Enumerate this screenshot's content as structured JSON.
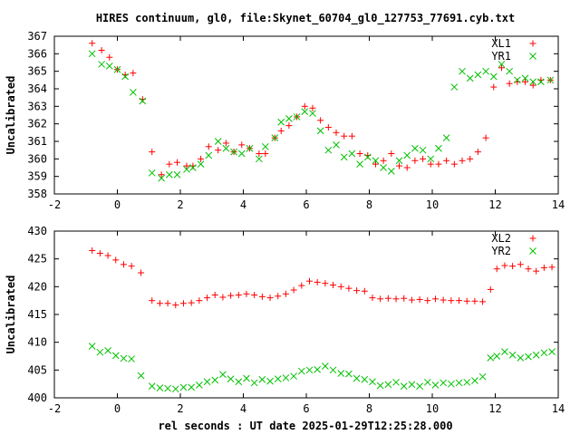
{
  "chart_data": [
    {
      "type": "scatter",
      "title": "HIRES continuum, gl0, file:Skynet_60704_gl0_127753_77691.cyb.txt",
      "ylabel": "Uncalibrated",
      "xlabel": "",
      "xlim": [
        -2,
        14
      ],
      "ylim": [
        358,
        367
      ],
      "xticks": [
        "-2",
        "0",
        "2",
        "4",
        "6",
        "8",
        "10",
        "12",
        "14"
      ],
      "yticks": [
        "358",
        "359",
        "360",
        "361",
        "362",
        "363",
        "364",
        "365",
        "366",
        "367"
      ],
      "legend_position": "top-right",
      "series": [
        {
          "name": "XL1",
          "marker": "plus",
          "color": "#ff0000",
          "x": [
            -0.8,
            -0.5,
            -0.25,
            0,
            0.25,
            0.5,
            0.8,
            1.1,
            1.4,
            1.65,
            1.9,
            2.2,
            2.4,
            2.65,
            2.9,
            3.2,
            3.45,
            3.7,
            3.95,
            4.2,
            4.5,
            4.7,
            5.0,
            5.2,
            5.45,
            5.7,
            5.95,
            6.2,
            6.45,
            6.7,
            6.95,
            7.2,
            7.45,
            7.7,
            7.95,
            8.2,
            8.45,
            8.7,
            8.95,
            9.2,
            9.45,
            9.7,
            9.95,
            10.2,
            10.45,
            10.7,
            10.95,
            11.2,
            11.45,
            11.7,
            11.95,
            12.2,
            12.45,
            12.7,
            12.95,
            13.2,
            13.45,
            13.75
          ],
          "y": [
            366.6,
            366.2,
            365.8,
            365.1,
            364.8,
            364.9,
            363.4,
            360.4,
            359.1,
            359.7,
            359.8,
            359.6,
            359.6,
            360.0,
            360.7,
            360.5,
            360.9,
            360.4,
            360.8,
            360.6,
            360.3,
            360.3,
            361.2,
            361.6,
            361.9,
            362.4,
            363.0,
            362.9,
            362.2,
            361.8,
            361.5,
            361.3,
            361.3,
            360.3,
            360.2,
            359.7,
            359.9,
            360.3,
            359.6,
            359.5,
            359.9,
            360.0,
            359.7,
            359.7,
            359.9,
            359.7,
            359.9,
            360.0,
            360.4,
            361.2,
            364.1,
            365.2,
            364.3,
            364.4,
            364.4,
            364.2,
            364.5,
            364.5
          ]
        },
        {
          "name": "YR1",
          "marker": "cross",
          "color": "#00c000",
          "x": [
            -0.8,
            -0.5,
            -0.25,
            0,
            0.25,
            0.5,
            0.8,
            1.1,
            1.4,
            1.65,
            1.9,
            2.2,
            2.4,
            2.65,
            2.9,
            3.2,
            3.45,
            3.7,
            3.95,
            4.2,
            4.5,
            4.7,
            5.0,
            5.2,
            5.45,
            5.7,
            5.95,
            6.2,
            6.45,
            6.7,
            6.95,
            7.2,
            7.45,
            7.7,
            7.95,
            8.2,
            8.45,
            8.7,
            8.95,
            9.2,
            9.45,
            9.7,
            9.95,
            10.2,
            10.45,
            10.7,
            10.95,
            11.2,
            11.45,
            11.7,
            11.95,
            12.2,
            12.45,
            12.7,
            12.95,
            13.2,
            13.45,
            13.75
          ],
          "y": [
            366.0,
            365.4,
            365.3,
            365.1,
            364.7,
            363.8,
            363.3,
            359.2,
            358.9,
            359.1,
            359.1,
            359.4,
            359.5,
            359.7,
            360.2,
            361.0,
            360.6,
            360.4,
            360.3,
            360.6,
            360.0,
            360.7,
            361.2,
            362.1,
            362.3,
            362.4,
            362.7,
            362.6,
            361.6,
            360.5,
            360.8,
            360.1,
            360.3,
            359.7,
            360.1,
            359.9,
            359.5,
            359.3,
            359.9,
            360.2,
            360.6,
            360.5,
            360.0,
            360.6,
            361.2,
            364.1,
            365.0,
            364.6,
            364.8,
            365.0,
            364.7,
            365.4,
            365.0,
            364.5,
            364.6,
            364.4,
            364.4,
            364.5
          ]
        }
      ]
    },
    {
      "type": "scatter",
      "title": "",
      "ylabel": "Uncalibrated",
      "xlabel": "rel seconds : UT date 2025-01-29T12:25:28.000",
      "xlim": [
        -2,
        14
      ],
      "ylim": [
        400,
        430
      ],
      "xticks": [
        "-2",
        "0",
        "2",
        "4",
        "6",
        "8",
        "10",
        "12",
        "14"
      ],
      "yticks": [
        "400",
        "405",
        "410",
        "415",
        "420",
        "425",
        "430"
      ],
      "legend_position": "top-right",
      "series": [
        {
          "name": "XL2",
          "marker": "plus",
          "color": "#ff0000",
          "x": [
            -0.8,
            -0.55,
            -0.3,
            -0.05,
            0.2,
            0.45,
            0.75,
            1.1,
            1.35,
            1.6,
            1.85,
            2.1,
            2.35,
            2.6,
            2.85,
            3.1,
            3.35,
            3.6,
            3.85,
            4.1,
            4.35,
            4.6,
            4.85,
            5.1,
            5.35,
            5.6,
            5.85,
            6.1,
            6.35,
            6.6,
            6.85,
            7.1,
            7.35,
            7.6,
            7.85,
            8.1,
            8.35,
            8.6,
            8.85,
            9.1,
            9.35,
            9.6,
            9.85,
            10.1,
            10.35,
            10.6,
            10.85,
            11.1,
            11.35,
            11.6,
            11.85,
            12.05,
            12.3,
            12.55,
            12.8,
            13.05,
            13.3,
            13.55,
            13.8
          ],
          "y": [
            426.5,
            426.0,
            425.6,
            424.8,
            424.0,
            423.7,
            422.5,
            417.5,
            417.0,
            417.0,
            416.7,
            417.0,
            417.1,
            417.5,
            418.0,
            418.5,
            418.1,
            418.4,
            418.5,
            418.7,
            418.5,
            418.2,
            418.0,
            418.3,
            418.7,
            419.4,
            420.2,
            421.0,
            420.8,
            420.6,
            420.3,
            420.0,
            419.7,
            419.3,
            419.2,
            418.0,
            417.8,
            417.9,
            417.8,
            417.9,
            417.6,
            417.7,
            417.5,
            417.8,
            417.6,
            417.5,
            417.5,
            417.4,
            417.4,
            417.3,
            419.5,
            423.2,
            423.8,
            423.7,
            424.0,
            423.2,
            422.8,
            423.4,
            423.5
          ]
        },
        {
          "name": "YR2",
          "marker": "cross",
          "color": "#00c000",
          "x": [
            -0.8,
            -0.55,
            -0.3,
            -0.05,
            0.2,
            0.45,
            0.75,
            1.1,
            1.35,
            1.6,
            1.85,
            2.1,
            2.35,
            2.6,
            2.85,
            3.1,
            3.35,
            3.6,
            3.85,
            4.1,
            4.35,
            4.6,
            4.85,
            5.1,
            5.35,
            5.6,
            5.85,
            6.1,
            6.35,
            6.6,
            6.85,
            7.1,
            7.35,
            7.6,
            7.85,
            8.1,
            8.35,
            8.6,
            8.85,
            9.1,
            9.35,
            9.6,
            9.85,
            10.1,
            10.35,
            10.6,
            10.85,
            11.1,
            11.35,
            11.6,
            11.85,
            12.05,
            12.3,
            12.55,
            12.8,
            13.05,
            13.3,
            13.55,
            13.8
          ],
          "y": [
            409.3,
            408.2,
            408.5,
            407.6,
            407.1,
            407.0,
            404.0,
            402.1,
            401.8,
            401.7,
            401.6,
            401.9,
            401.9,
            402.3,
            402.9,
            403.2,
            404.2,
            403.4,
            402.9,
            403.5,
            402.7,
            403.3,
            403.0,
            403.4,
            403.6,
            403.9,
            404.8,
            405.0,
            405.1,
            405.7,
            405.0,
            404.4,
            404.3,
            403.5,
            403.3,
            402.9,
            402.2,
            402.4,
            402.8,
            402.1,
            402.4,
            402.1,
            402.8,
            402.3,
            402.7,
            402.5,
            402.7,
            402.8,
            403.1,
            403.8,
            407.2,
            407.5,
            408.3,
            407.7,
            407.2,
            407.4,
            407.7,
            408.1,
            408.3
          ]
        }
      ]
    }
  ]
}
